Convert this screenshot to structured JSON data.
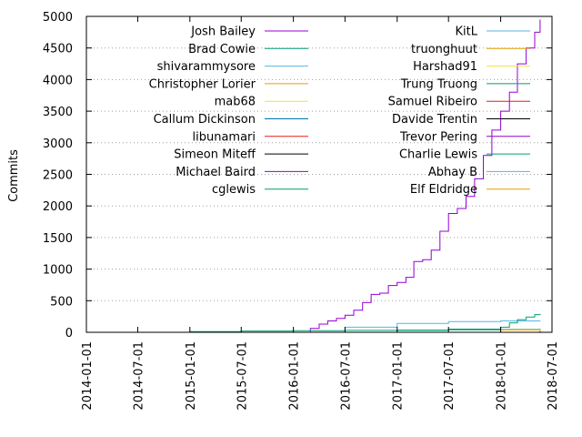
{
  "chart_data": {
    "type": "line",
    "title": "",
    "xlabel": "",
    "ylabel": "Commits",
    "ylim": [
      0,
      5000
    ],
    "xlim": [
      "2014-01-01",
      "2018-07-01"
    ],
    "yticks": [
      0,
      500,
      1000,
      1500,
      2000,
      2500,
      3000,
      3500,
      4000,
      4500,
      5000
    ],
    "xticks": [
      "2014-01-01",
      "2014-07-01",
      "2015-01-01",
      "2015-07-01",
      "2016-01-01",
      "2016-07-01",
      "2017-01-01",
      "2017-07-01",
      "2018-01-01",
      "2018-07-01"
    ],
    "grid": "y-dotted",
    "legend_placement": "inside-top, two columns",
    "series": [
      {
        "name": "Josh Bailey",
        "color": "#9400d3",
        "x": [
          "2016-02-15",
          "2016-03-01",
          "2016-04-01",
          "2016-05-01",
          "2016-06-01",
          "2016-07-01",
          "2016-08-01",
          "2016-09-01",
          "2016-10-01",
          "2016-11-01",
          "2016-12-01",
          "2017-01-01",
          "2017-02-01",
          "2017-03-01",
          "2017-04-01",
          "2017-05-01",
          "2017-06-01",
          "2017-07-01",
          "2017-08-01",
          "2017-09-01",
          "2017-10-01",
          "2017-11-01",
          "2017-12-01",
          "2018-01-01",
          "2018-02-01",
          "2018-03-01",
          "2018-04-01",
          "2018-05-01",
          "2018-05-20"
        ],
        "values": [
          0,
          60,
          130,
          180,
          220,
          270,
          350,
          470,
          600,
          620,
          740,
          790,
          870,
          1120,
          1150,
          1300,
          1600,
          1880,
          1960,
          2150,
          2430,
          2800,
          3200,
          3500,
          3800,
          4250,
          4500,
          4750,
          4950
        ]
      },
      {
        "name": "Brad Cowie",
        "color": "#009e73",
        "x": [
          "2014-07-01",
          "2015-01-01",
          "2015-07-01",
          "2016-01-01",
          "2016-07-01",
          "2017-01-01",
          "2017-07-01",
          "2018-01-01",
          "2018-05-20"
        ],
        "values": [
          0,
          10,
          20,
          25,
          30,
          35,
          40,
          45,
          50
        ]
      },
      {
        "name": "shivarammysore",
        "color": "#56b4e9",
        "x": [
          "2016-01-01",
          "2016-07-01",
          "2017-01-01",
          "2017-07-01",
          "2018-01-01",
          "2018-05-20"
        ],
        "values": [
          0,
          80,
          140,
          170,
          180,
          185
        ]
      },
      {
        "name": "Christopher Lorier",
        "color": "#e69f00",
        "x": [
          "2017-07-01",
          "2018-01-01",
          "2018-05-20"
        ],
        "values": [
          0,
          40,
          60
        ]
      },
      {
        "name": "mab68",
        "color": "#f0e442",
        "x": [
          "2017-01-01",
          "2018-05-20"
        ],
        "values": [
          0,
          5
        ]
      },
      {
        "name": "Callum Dickinson",
        "color": "#0072b2",
        "x": [
          "2017-01-01",
          "2018-05-20"
        ],
        "values": [
          0,
          10
        ]
      },
      {
        "name": "libunamari",
        "color": "#e51e10",
        "x": [
          "2017-07-01",
          "2018-05-20"
        ],
        "values": [
          0,
          5
        ]
      },
      {
        "name": "Simeon Miteff",
        "color": "#000000",
        "x": [
          "2016-07-01",
          "2018-05-20"
        ],
        "values": [
          0,
          20
        ]
      },
      {
        "name": "Michael Baird",
        "color": "#9400d3",
        "x": [
          "2016-07-01",
          "2018-05-20"
        ],
        "values": [
          0,
          5
        ]
      },
      {
        "name": "cglewis",
        "color": "#009e73",
        "x": [
          "2016-07-01",
          "2017-01-01",
          "2017-07-01",
          "2018-01-01",
          "2018-02-01",
          "2018-03-01",
          "2018-04-01",
          "2018-05-01",
          "2018-05-20"
        ],
        "values": [
          0,
          30,
          50,
          80,
          150,
          200,
          240,
          280,
          290
        ]
      },
      {
        "name": "KitL",
        "color": "#56b4e9",
        "x": [
          "2018-01-01",
          "2018-05-20"
        ],
        "values": [
          0,
          5
        ]
      },
      {
        "name": "truonghuut",
        "color": "#e69f00",
        "x": [
          "2018-01-01",
          "2018-05-20"
        ],
        "values": [
          0,
          10
        ]
      },
      {
        "name": "Harshad91",
        "color": "#f0e442",
        "x": [
          "2018-01-01",
          "2018-05-20"
        ],
        "values": [
          0,
          5
        ]
      },
      {
        "name": "Trung Truong",
        "color": "#009e73",
        "x": [
          "2018-01-01",
          "2018-05-20"
        ],
        "values": [
          0,
          5
        ]
      },
      {
        "name": "Samuel Ribeiro",
        "color": "#e51e10",
        "x": [
          "2018-01-01",
          "2018-05-20"
        ],
        "values": [
          0,
          3
        ]
      },
      {
        "name": "Davide Trentin",
        "color": "#000000",
        "x": [
          "2018-01-01",
          "2018-05-20"
        ],
        "values": [
          0,
          3
        ]
      },
      {
        "name": "Trevor Pering",
        "color": "#9400d3",
        "x": [
          "2018-01-01",
          "2018-05-20"
        ],
        "values": [
          0,
          3
        ]
      },
      {
        "name": "Charlie Lewis",
        "color": "#009e73",
        "x": [
          "2018-01-01",
          "2018-05-20"
        ],
        "values": [
          0,
          3
        ]
      },
      {
        "name": "Abhay B",
        "color": "#56b4e9",
        "x": [
          "2018-01-01",
          "2018-05-20"
        ],
        "values": [
          0,
          3
        ]
      },
      {
        "name": "Elf Eldridge",
        "color": "#e69f00",
        "x": [
          "2018-01-01",
          "2018-05-20"
        ],
        "values": [
          0,
          3
        ]
      }
    ]
  }
}
